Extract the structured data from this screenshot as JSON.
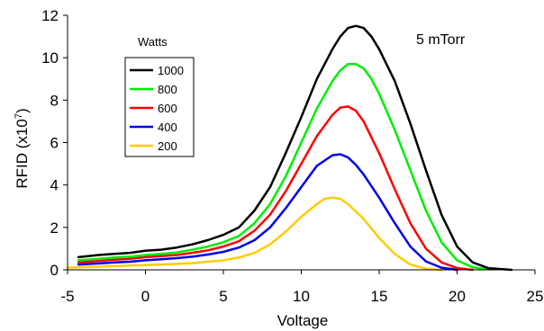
{
  "chart_data": {
    "type": "line",
    "xlabel": "Voltage",
    "ylabel": "RFID (x10",
    "ylabel_sup": "7",
    "ylabel_close": ")",
    "annotation": "5 mTorr",
    "legend_title": "Watts",
    "xlim": [
      -5,
      25
    ],
    "ylim": [
      0,
      12
    ],
    "xticks": [
      "-5",
      "0",
      "5",
      "10",
      "15",
      "20",
      "25"
    ],
    "yticks": [
      "0",
      "2",
      "4",
      "6",
      "8",
      "10",
      "12"
    ],
    "series": [
      {
        "name": "1000",
        "color": "#000000",
        "x": [
          -4.3,
          -3,
          -2,
          -1,
          0,
          1,
          2,
          3,
          4,
          5,
          6,
          7,
          8,
          9,
          10,
          11,
          12,
          12.5,
          13,
          13.5,
          14,
          14.5,
          15,
          16,
          17,
          18,
          19,
          20,
          21,
          22,
          23.5
        ],
        "y": [
          0.6,
          0.7,
          0.75,
          0.8,
          0.9,
          0.95,
          1.05,
          1.2,
          1.4,
          1.65,
          2.0,
          2.8,
          3.9,
          5.5,
          7.2,
          9.0,
          10.4,
          11.0,
          11.4,
          11.5,
          11.4,
          11.0,
          10.4,
          8.9,
          6.9,
          4.7,
          2.6,
          1.1,
          0.35,
          0.08,
          0.0
        ]
      },
      {
        "name": "800",
        "color": "#00ee00",
        "x": [
          -4.3,
          -3,
          -2,
          -1,
          0,
          1,
          2,
          3,
          4,
          5,
          6,
          7,
          8,
          9,
          10,
          11,
          12,
          12.5,
          13,
          13.5,
          14,
          14.5,
          15,
          16,
          17,
          18,
          19,
          20,
          21,
          22
        ],
        "y": [
          0.45,
          0.52,
          0.58,
          0.62,
          0.7,
          0.75,
          0.82,
          0.95,
          1.1,
          1.3,
          1.6,
          2.2,
          3.1,
          4.4,
          6.0,
          7.6,
          8.9,
          9.4,
          9.7,
          9.7,
          9.5,
          9.0,
          8.3,
          6.6,
          4.7,
          2.8,
          1.3,
          0.45,
          0.12,
          0.02
        ]
      },
      {
        "name": "600",
        "color": "#ff0000",
        "x": [
          -4.3,
          -3,
          -2,
          -1,
          0,
          1,
          2,
          3,
          4,
          5,
          6,
          7,
          8,
          9,
          10,
          11,
          12,
          12.5,
          13,
          13.5,
          14,
          15,
          16,
          17,
          18,
          19,
          20,
          21
        ],
        "y": [
          0.35,
          0.42,
          0.48,
          0.52,
          0.6,
          0.65,
          0.7,
          0.8,
          0.92,
          1.1,
          1.35,
          1.85,
          2.6,
          3.7,
          5.0,
          6.3,
          7.3,
          7.65,
          7.7,
          7.5,
          7.0,
          5.5,
          3.8,
          2.2,
          1.0,
          0.35,
          0.08,
          0.0
        ]
      },
      {
        "name": "400",
        "color": "#0000ee",
        "x": [
          -4.3,
          -3,
          -2,
          -1,
          0,
          1,
          2,
          3,
          4,
          5,
          6,
          7,
          8,
          9,
          10,
          11,
          12,
          12.5,
          13,
          13.5,
          14,
          15,
          16,
          17,
          18,
          19,
          20
        ],
        "y": [
          0.25,
          0.3,
          0.35,
          0.38,
          0.45,
          0.5,
          0.55,
          0.62,
          0.72,
          0.85,
          1.05,
          1.4,
          2.0,
          2.9,
          3.9,
          4.9,
          5.4,
          5.45,
          5.3,
          4.95,
          4.5,
          3.4,
          2.2,
          1.1,
          0.4,
          0.1,
          0.0
        ]
      },
      {
        "name": "200",
        "color": "#ffcc00",
        "x": [
          -5,
          -3,
          -2,
          -1,
          0,
          1,
          2,
          3,
          4,
          5,
          6,
          7,
          8,
          9,
          10,
          11,
          11.5,
          12,
          12.5,
          13,
          14,
          15,
          16,
          17,
          18,
          19
        ],
        "y": [
          0.1,
          0.15,
          0.18,
          0.2,
          0.22,
          0.25,
          0.28,
          0.32,
          0.38,
          0.45,
          0.58,
          0.8,
          1.2,
          1.8,
          2.5,
          3.1,
          3.35,
          3.4,
          3.35,
          3.1,
          2.4,
          1.5,
          0.75,
          0.25,
          0.05,
          0.0
        ]
      }
    ]
  }
}
